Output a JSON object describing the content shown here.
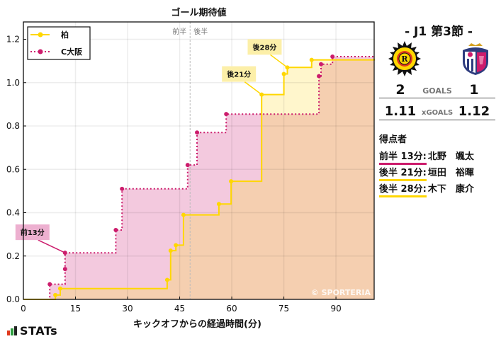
{
  "chart_data": {
    "type": "line",
    "subtype": "step-area",
    "title": "ゴール期待値",
    "xlabel": "キックオフからの経過時間(分)",
    "ylabel": "",
    "xlim": [
      0,
      101
    ],
    "ylim": [
      0,
      1.28
    ],
    "xticks": [
      0,
      15,
      30,
      45,
      60,
      75,
      90
    ],
    "yticks": [
      0.0,
      0.2,
      0.4,
      0.6,
      0.8,
      1.0,
      1.2
    ],
    "grid": true,
    "legend_position": "upper left",
    "halftime_line": {
      "x": 48,
      "labels": [
        "前半",
        "後半"
      ]
    },
    "watermark": "© SPORTERIA",
    "series": [
      {
        "name": "柏",
        "color": "#FFD700",
        "fill": "#F5CFB0",
        "line_style": "solid",
        "x": [
          9.2,
          10.6,
          41.4,
          42.4,
          43.9,
          46.1,
          56.3,
          59.8,
          68.6,
          75.0,
          76.0,
          83.0,
          101
        ],
        "values": [
          0.02,
          0.05,
          0.09,
          0.225,
          0.25,
          0.39,
          0.44,
          0.545,
          0.945,
          1.04,
          1.07,
          1.105,
          1.11
        ]
      },
      {
        "name": "C大阪",
        "color": "#CC1C6C",
        "fill": "#F3C9DE",
        "line_style": "dotted",
        "x": [
          7.6,
          12.0,
          12.0,
          26.6,
          28.4,
          47.3,
          50.0,
          58.4,
          85.1,
          85.7,
          89.0,
          101
        ],
        "values": [
          0.07,
          0.14,
          0.215,
          0.32,
          0.51,
          0.62,
          0.77,
          0.855,
          1.03,
          1.085,
          1.12,
          1.12
        ]
      }
    ],
    "annotations": [
      {
        "text": "前13分",
        "x": 12.0,
        "y": 0.215,
        "team": "C大阪"
      },
      {
        "text": "後21分",
        "x": 68.6,
        "y": 0.945,
        "team": "柏"
      },
      {
        "text": "後28分",
        "x": 76.0,
        "y": 1.07,
        "team": "柏"
      }
    ]
  },
  "side": {
    "round": "- J1 第3節 -",
    "home_team": "柏",
    "away_team": "C大阪",
    "goals_label": "GOALS",
    "home_goals": "2",
    "away_goals": "1",
    "xgoals_label": "xGOALS",
    "home_xg": "1.11",
    "away_xg": "1.12",
    "scorers_title": "得点者",
    "scorers": [
      {
        "time": "前半 13分:",
        "name": "北野　颯太",
        "color": "#CC1C6C"
      },
      {
        "time": "後半 21分:",
        "name": "垣田　裕暉",
        "color": "#FFD700"
      },
      {
        "time": "後半 28分:",
        "name": "木下　康介",
        "color": "#FFD700"
      }
    ]
  },
  "footer": {
    "brand": "STATs"
  }
}
